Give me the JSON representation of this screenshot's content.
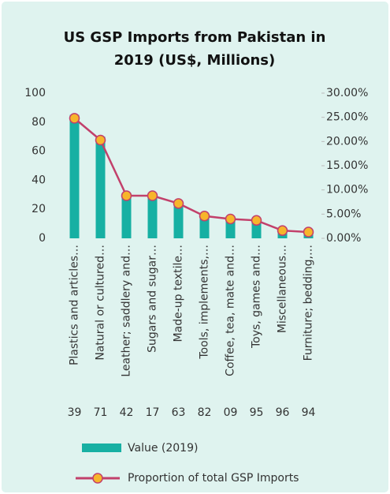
{
  "chart_data": {
    "type": "bar-line",
    "title": [
      "US GSP Imports from Pakistan in",
      "2019 (US$, Millions)"
    ],
    "categories": [
      "Plastics and articles…",
      "Natural or cultured…",
      "Leather; saddlery and…",
      "Sugars and sugar…",
      "Made-up textile…",
      "Tools, implements,…",
      "Coffee, tea, mate and…",
      "Toys, games and…",
      "Miscellaneous…",
      "Furniture; bedding,…"
    ],
    "codes": [
      "39",
      "71",
      "42",
      "17",
      "63",
      "82",
      "09",
      "95",
      "96",
      "94"
    ],
    "series": [
      {
        "name": "Value (2019)",
        "color": "#17b0a3",
        "values": [
          85,
          70,
          28,
          28,
          22,
          14,
          12,
          11,
          5,
          4
        ]
      },
      {
        "name": "Proportion of total GSP Imports",
        "color": "#c2406b",
        "marker_color": "#f7b52b",
        "axis": "y2",
        "values": [
          24.8,
          20.3,
          8.8,
          8.8,
          7.2,
          4.6,
          4.0,
          3.7,
          1.6,
          1.3
        ]
      }
    ],
    "ylim": [
      0,
      100
    ],
    "yticks": [
      0,
      20,
      40,
      60,
      80,
      100
    ],
    "y2lim": [
      0,
      30
    ],
    "y2ticks": [
      {
        "value": 0,
        "label": "0.00%"
      },
      {
        "value": 5,
        "label": "5.00%"
      },
      {
        "value": 10,
        "label": "10.00%"
      },
      {
        "value": 15,
        "label": "15.00%"
      },
      {
        "value": 20,
        "label": "20.00%"
      },
      {
        "value": 25,
        "label": "25.00%"
      },
      {
        "value": 30,
        "label": "30.00%"
      }
    ],
    "grid": false
  }
}
